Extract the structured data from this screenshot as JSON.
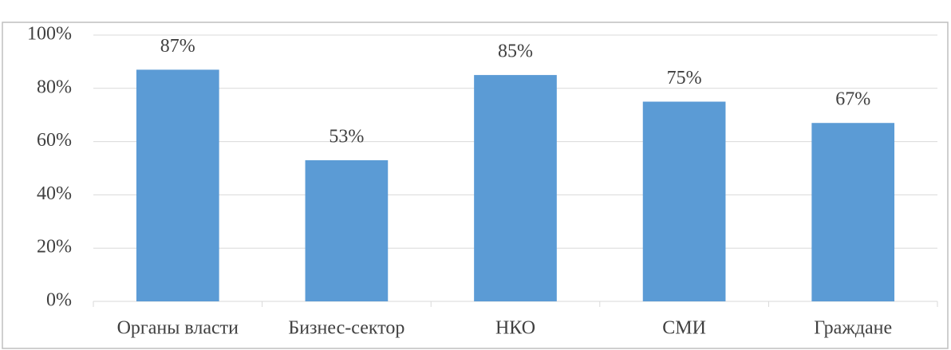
{
  "chart_data": {
    "type": "bar",
    "categories": [
      "Органы власти",
      "Бизнес-сектор",
      "НКО",
      "СМИ",
      "Граждане"
    ],
    "values": [
      87,
      53,
      85,
      75,
      67
    ],
    "value_labels": [
      "87%",
      "53%",
      "85%",
      "75%",
      "67%"
    ],
    "color": "#5b9bd5",
    "ylim": [
      0,
      100
    ],
    "yticks": [
      {
        "value": 0,
        "label": "0%"
      },
      {
        "value": 20,
        "label": "20%"
      },
      {
        "value": 40,
        "label": "40%"
      },
      {
        "value": 60,
        "label": "60%"
      },
      {
        "value": 80,
        "label": "80%"
      },
      {
        "value": 100,
        "label": "100%"
      }
    ],
    "grid": true
  }
}
